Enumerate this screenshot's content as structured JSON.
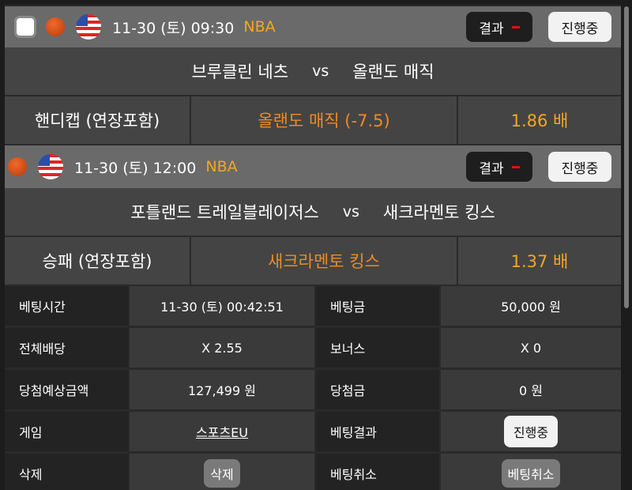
{
  "games": [
    {
      "datetime": "11-30 (토) 09:30",
      "league": "NBA",
      "result_label": "결과",
      "result_value": "-",
      "status": "진행중",
      "home": "브루클린 네츠",
      "vs": "vs",
      "away": "올랜도 매직",
      "market": "핸디캡 (연장포함)",
      "pick": "올랜도 매직 (-7.5)",
      "odds": "1.86 배",
      "has_checkbox": true
    },
    {
      "datetime": "11-30 (토) 12:00",
      "league": "NBA",
      "result_label": "결과",
      "result_value": "-",
      "status": "진행중",
      "home": "포틀랜드 트레일블레이저스",
      "vs": "vs",
      "away": "새크라멘토 킹스",
      "market": "승패 (연장포함)",
      "pick": "새크라멘토 킹스",
      "odds": "1.37 배",
      "has_checkbox": false
    }
  ],
  "summary": {
    "bet_time_label": "베팅시간",
    "bet_time": "11-30 (토) 00:42:51",
    "bet_amount_label": "베팅금",
    "bet_amount": "50,000 원",
    "total_odds_label": "전체배당",
    "total_odds": "X 2.55",
    "bonus_label": "보너스",
    "bonus": "X 0",
    "expected_label": "당첨예상금액",
    "expected": "127,499 원",
    "win_label": "당첨금",
    "win": "0 원",
    "game_label": "게임",
    "game": "스포츠EU",
    "bet_result_label": "베팅결과",
    "bet_result": "진행중",
    "delete_label": "삭제",
    "delete_button": "삭제",
    "cancel_label": "베팅취소",
    "cancel_button": "베팅취소"
  },
  "colors": {
    "league": "#f5a623",
    "pick": "#f08a24",
    "odds": "#f5a623",
    "result_dash": "#e01010"
  },
  "icons": [
    "checkbox",
    "basketball-icon",
    "us-flag-icon"
  ]
}
